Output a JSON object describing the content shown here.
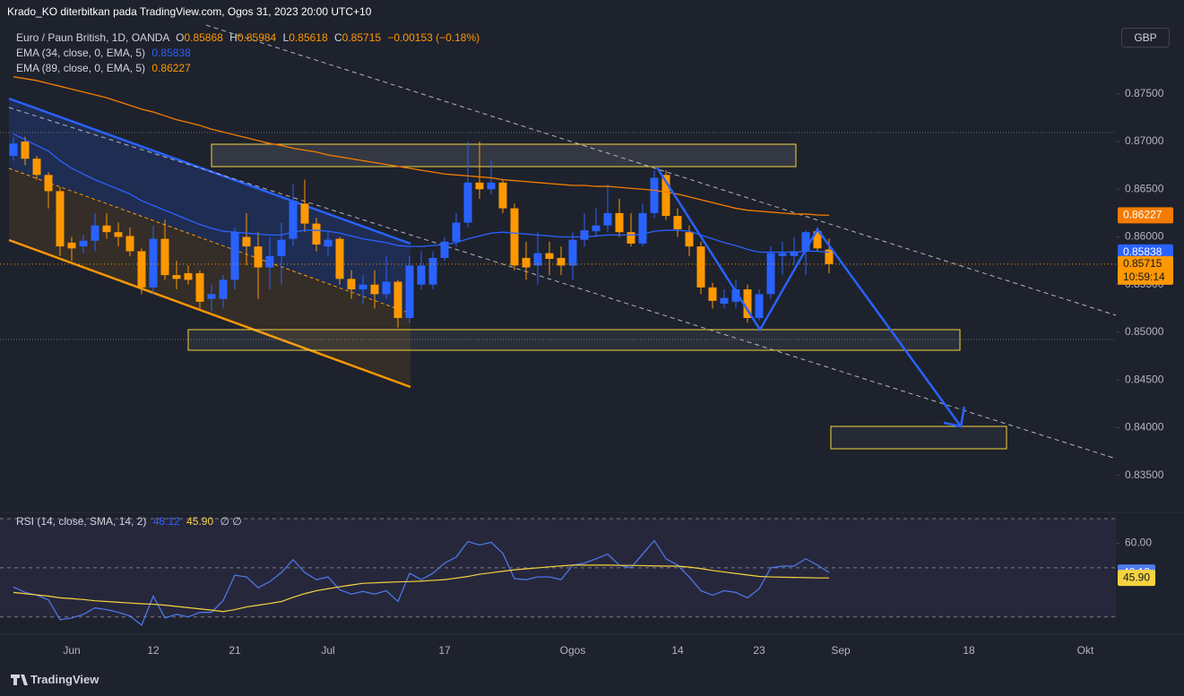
{
  "header": {
    "text": "Krado_KO diterbitkan pada TradingView.com, Ogos 31, 2023 20:00 UTC+10"
  },
  "footer": {
    "brand": "TradingView"
  },
  "chart_data": [
    {
      "type": "candlestick",
      "title": "Euro / Paun British, 1D, OANDA",
      "ohlc_letters": [
        "O",
        "H",
        "L",
        "C"
      ],
      "change_label": "−0.00153 (−0.18%)",
      "currency": "GBP",
      "countdown": "10:59:14",
      "up_color": "#2962ff",
      "down_color": "#ff9800",
      "categories": [
        null,
        null,
        null,
        null,
        null,
        "Jun",
        null,
        null,
        null,
        null,
        null,
        null,
        "12",
        null,
        null,
        null,
        null,
        null,
        null,
        "21",
        null,
        null,
        null,
        null,
        null,
        null,
        null,
        "Jul",
        null,
        null,
        null,
        null,
        null,
        null,
        null,
        null,
        null,
        "17",
        null,
        null,
        null,
        null,
        null,
        null,
        null,
        null,
        null,
        null,
        "Ogos",
        null,
        null,
        null,
        null,
        null,
        null,
        null,
        null,
        "14",
        null,
        null,
        null,
        null,
        null,
        null,
        "23",
        null,
        null,
        null,
        null,
        null,
        null,
        "Sep",
        null,
        null,
        null,
        null,
        null,
        null,
        null,
        null,
        null,
        null,
        "18",
        null,
        null,
        null,
        null,
        null,
        null,
        null,
        null,
        null,
        "Okt",
        null,
        null
      ],
      "open": [
        0.8685,
        0.87,
        0.8682,
        0.8665,
        0.8648,
        0.8594,
        0.859,
        0.8596,
        0.8612,
        0.8605,
        0.8601,
        0.8585,
        0.8547,
        0.8598,
        0.856,
        0.8562,
        0.8562,
        0.8535,
        0.8535,
        0.8555,
        0.86,
        0.859,
        0.8568,
        0.858,
        0.8598,
        0.8635,
        0.8614,
        0.859,
        0.8598,
        0.8556,
        0.8545,
        0.855,
        0.854,
        0.8553,
        0.8515,
        0.855,
        0.855,
        0.8578,
        0.8595,
        0.8615,
        0.8657,
        0.865,
        0.8657,
        0.863,
        0.8578,
        0.857,
        0.8583,
        0.8578,
        0.857,
        0.8597,
        0.8606,
        0.8612,
        0.8625,
        0.8605,
        0.8593,
        0.8625,
        0.8665,
        0.8622,
        0.8605,
        0.859,
        0.8547,
        0.853,
        0.8532,
        0.8545,
        0.8515,
        0.854,
        0.858,
        0.858,
        0.8585,
        0.8606,
        0.85868,
        null,
        null,
        null,
        null,
        null,
        null,
        null,
        null,
        null,
        null,
        null,
        null,
        null,
        null,
        null,
        null,
        null,
        null,
        null,
        null,
        null,
        null,
        null,
        null
      ],
      "high": [
        0.8705,
        0.8705,
        0.8685,
        0.8668,
        0.8652,
        0.86,
        0.8602,
        0.8625,
        0.8625,
        0.8615,
        0.861,
        0.8588,
        0.8612,
        0.8618,
        0.8575,
        0.857,
        0.8565,
        0.855,
        0.856,
        0.861,
        0.8625,
        0.8605,
        0.86,
        0.8615,
        0.8655,
        0.866,
        0.862,
        0.8605,
        0.86,
        0.8565,
        0.856,
        0.8565,
        0.858,
        0.8555,
        0.858,
        0.8585,
        0.8585,
        0.86,
        0.8625,
        0.87,
        0.87,
        0.868,
        0.866,
        0.8635,
        0.8595,
        0.8605,
        0.8595,
        0.859,
        0.8605,
        0.8625,
        0.863,
        0.8655,
        0.864,
        0.8625,
        0.8635,
        0.867,
        0.867,
        0.863,
        0.8612,
        0.8595,
        0.8552,
        0.8545,
        0.8555,
        0.855,
        0.8545,
        0.859,
        0.8595,
        0.86,
        0.8607,
        0.861,
        0.85984,
        null,
        null,
        null,
        null,
        null,
        null,
        null,
        null,
        null,
        null,
        null,
        null,
        null,
        null,
        null,
        null,
        null,
        null,
        null,
        null,
        null,
        null,
        null,
        null
      ],
      "low": [
        0.868,
        0.8675,
        0.866,
        0.863,
        0.858,
        0.8575,
        0.8583,
        0.8585,
        0.8598,
        0.859,
        0.858,
        0.854,
        0.854,
        0.8555,
        0.8545,
        0.855,
        0.8525,
        0.8522,
        0.8525,
        0.8545,
        0.857,
        0.8535,
        0.8545,
        0.855,
        0.859,
        0.8605,
        0.8585,
        0.858,
        0.855,
        0.8535,
        0.853,
        0.8525,
        0.8535,
        0.8505,
        0.851,
        0.8545,
        0.8545,
        0.8575,
        0.859,
        0.861,
        0.864,
        0.8645,
        0.8625,
        0.8565,
        0.8555,
        0.855,
        0.856,
        0.856,
        0.8555,
        0.859,
        0.86,
        0.8605,
        0.86,
        0.859,
        0.859,
        0.862,
        0.8618,
        0.86,
        0.858,
        0.854,
        0.8525,
        0.8525,
        0.8525,
        0.851,
        0.8512,
        0.8535,
        0.856,
        0.857,
        0.856,
        0.8585,
        0.85618,
        null,
        null,
        null,
        null,
        null,
        null,
        null,
        null,
        null,
        null,
        null,
        null,
        null,
        null,
        null,
        null,
        null,
        null,
        null,
        null,
        null,
        null,
        null,
        null
      ],
      "close": [
        0.8698,
        0.8682,
        0.8665,
        0.8648,
        0.859,
        0.8588,
        0.8596,
        0.8612,
        0.8605,
        0.86,
        0.8585,
        0.8547,
        0.8598,
        0.856,
        0.8556,
        0.8555,
        0.8532,
        0.854,
        0.8555,
        0.8605,
        0.859,
        0.8568,
        0.858,
        0.8597,
        0.8638,
        0.8614,
        0.8592,
        0.8597,
        0.8556,
        0.8545,
        0.855,
        0.854,
        0.8553,
        0.8515,
        0.857,
        0.857,
        0.8578,
        0.8595,
        0.8615,
        0.8657,
        0.865,
        0.8657,
        0.863,
        0.857,
        0.8568,
        0.8583,
        0.8577,
        0.857,
        0.8597,
        0.8607,
        0.8612,
        0.8625,
        0.8605,
        0.8593,
        0.8625,
        0.8662,
        0.8622,
        0.8608,
        0.859,
        0.8547,
        0.8533,
        0.8536,
        0.8545,
        0.8515,
        0.854,
        0.8583,
        0.8583,
        0.8585,
        0.8605,
        0.8588,
        0.85715,
        null,
        null,
        null,
        null,
        null,
        null,
        null,
        null,
        null,
        null,
        null,
        null,
        null,
        null,
        null,
        null,
        null,
        null,
        null,
        null,
        null,
        null,
        null,
        null
      ],
      "series": [
        {
          "name": "EMA (34, close, 0, EMA, 5)",
          "color": "#2962ff",
          "values": [
            0.8708,
            0.8702,
            0.8696,
            0.869,
            0.868,
            0.8672,
            0.8666,
            0.866,
            0.8655,
            0.865,
            0.8645,
            0.8638,
            0.8633,
            0.8628,
            0.8623,
            0.8618,
            0.8613,
            0.8609,
            0.8606,
            0.8605,
            0.8604,
            0.8603,
            0.8602,
            0.8602,
            0.8605,
            0.8607,
            0.8607,
            0.8606,
            0.8604,
            0.8601,
            0.8598,
            0.8596,
            0.8594,
            0.8591,
            0.859,
            0.859,
            0.8591,
            0.8592,
            0.8594,
            0.8598,
            0.8601,
            0.8604,
            0.8605,
            0.8604,
            0.8603,
            0.8602,
            0.8601,
            0.86,
            0.86,
            0.86,
            0.8601,
            0.8602,
            0.8602,
            0.8602,
            0.8603,
            0.8606,
            0.8607,
            0.8607,
            0.8606,
            0.8602,
            0.8598,
            0.8594,
            0.8591,
            0.8587,
            0.8584,
            0.8584,
            0.8584,
            0.8584,
            0.8585,
            0.8585,
            0.85838,
            null,
            null,
            null,
            null,
            null,
            null,
            null,
            null,
            null,
            null,
            null,
            null,
            null,
            null,
            null,
            null,
            null,
            null,
            null,
            null,
            null,
            null,
            null,
            null
          ]
        },
        {
          "name": "EMA (89, close, 0, EMA, 5)",
          "color": "#f57c00",
          "values": [
            0.8768,
            0.8766,
            0.8764,
            0.8761,
            0.8758,
            0.8755,
            0.8752,
            0.8749,
            0.8746,
            0.8742,
            0.8738,
            0.8734,
            0.8731,
            0.8727,
            0.8723,
            0.872,
            0.8717,
            0.8713,
            0.871,
            0.8707,
            0.8704,
            0.8701,
            0.8698,
            0.8696,
            0.8693,
            0.8691,
            0.8689,
            0.8686,
            0.8684,
            0.8682,
            0.868,
            0.8678,
            0.8676,
            0.8674,
            0.8672,
            0.867,
            0.8668,
            0.8666,
            0.8665,
            0.8664,
            0.8663,
            0.8662,
            0.866,
            0.8659,
            0.8658,
            0.8657,
            0.8656,
            0.8655,
            0.8654,
            0.8654,
            0.8653,
            0.8653,
            0.8652,
            0.8651,
            0.865,
            0.8649,
            0.8647,
            0.8645,
            0.8642,
            0.8639,
            0.8636,
            0.8633,
            0.863,
            0.8628,
            0.8627,
            0.8626,
            0.8625,
            0.8624,
            0.8624,
            0.8623,
            0.86227,
            null,
            null,
            null,
            null,
            null,
            null,
            null,
            null,
            null,
            null,
            null,
            null,
            null,
            null,
            null,
            null,
            null,
            null,
            null,
            null,
            null,
            null,
            null,
            null
          ]
        }
      ],
      "ylim": [
        0.8313,
        0.8825
      ],
      "yticks": [
        {
          "value": 0.835,
          "label": "0.83500"
        },
        {
          "value": 0.84,
          "label": "0.84000"
        },
        {
          "value": 0.845,
          "label": "0.84500"
        },
        {
          "value": 0.85,
          "label": "0.85000"
        },
        {
          "value": 0.855,
          "label": "0.85500"
        },
        {
          "value": 0.86,
          "label": "0.86000"
        },
        {
          "value": 0.865,
          "label": "0.86500"
        },
        {
          "value": 0.87,
          "label": "0.87000"
        },
        {
          "value": 0.875,
          "label": "0.87500"
        }
      ]
    },
    {
      "type": "line",
      "title": "RSI (14, close, SMA, 14, 2)",
      "legend_extra": "∅ ∅",
      "band_color": "#7e57c2",
      "series": [
        {
          "color": "#4f7cf0",
          "values": [
            42.2,
            40.0,
            38.9,
            37.0,
            28.9,
            29.6,
            31.1,
            33.7,
            33.0,
            31.9,
            30.4,
            26.7,
            38.5,
            29.6,
            31.1,
            30.0,
            31.9,
            31.9,
            36.7,
            47.0,
            46.3,
            41.9,
            44.4,
            48.1,
            53.3,
            48.1,
            45.2,
            46.3,
            41.1,
            39.3,
            40.4,
            39.3,
            40.7,
            36.3,
            47.8,
            45.2,
            47.8,
            51.9,
            54.4,
            60.7,
            59.3,
            60.4,
            55.9,
            45.6,
            45.2,
            46.3,
            46.3,
            45.2,
            51.1,
            51.9,
            53.7,
            55.6,
            51.1,
            50.0,
            55.6,
            61.1,
            53.7,
            51.1,
            46.3,
            40.7,
            38.9,
            40.7,
            40.0,
            37.8,
            41.5,
            50.0,
            50.7,
            50.7,
            53.7,
            51.1,
            48.12,
            null,
            null,
            null,
            null,
            null,
            null,
            null,
            null,
            null,
            null,
            null,
            null,
            null,
            null,
            null,
            null,
            null,
            null,
            null,
            null,
            null,
            null,
            null,
            null
          ]
        },
        {
          "color": "#f5d33f",
          "last_value_label": "45.90",
          "values": [
            40.0,
            39.5,
            39.0,
            38.5,
            37.8,
            37.5,
            37.1,
            36.6,
            36.3,
            36.0,
            35.7,
            35.4,
            35.2,
            34.8,
            34.3,
            33.8,
            33.3,
            32.8,
            32.2,
            33.0,
            34.1,
            34.8,
            35.5,
            36.3,
            38.0,
            39.5,
            40.7,
            41.5,
            42.3,
            43.0,
            43.7,
            43.9,
            44.1,
            44.3,
            44.4,
            44.6,
            44.9,
            45.2,
            45.8,
            46.5,
            47.4,
            48.0,
            48.6,
            49.2,
            49.6,
            50.0,
            50.4,
            50.8,
            51.1,
            51.1,
            51.1,
            51.1,
            51.0,
            51.0,
            50.9,
            50.8,
            50.7,
            50.7,
            50.3,
            49.7,
            48.9,
            48.3,
            47.7,
            47.1,
            46.5,
            46.3,
            46.2,
            46.1,
            46.0,
            45.9,
            45.9,
            null,
            null,
            null,
            null,
            null,
            null,
            null,
            null,
            null,
            null,
            null,
            null,
            null,
            null,
            null,
            null,
            null,
            null,
            null,
            null,
            null,
            null,
            null,
            null
          ]
        }
      ],
      "ylim": [
        24.1,
        72.2
      ],
      "yticks": [
        {
          "value": 60,
          "label": "60.00"
        }
      ],
      "levels": [
        70,
        50,
        30
      ]
    }
  ]
}
